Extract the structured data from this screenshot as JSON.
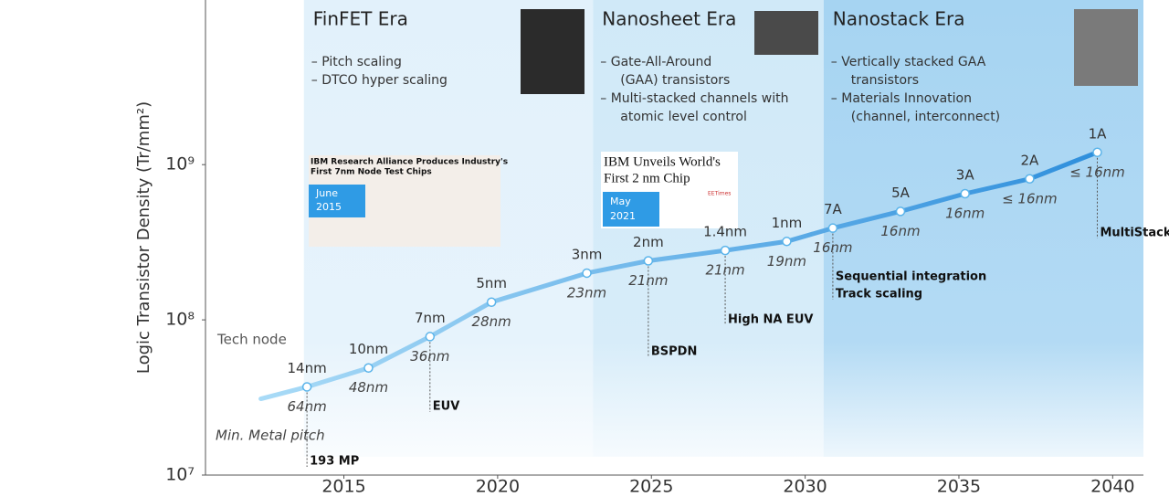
{
  "chart_data": {
    "type": "line",
    "y_label": "Logic Transistor Density (Tr/mm²)",
    "log_y": true,
    "xlim": [
      2010.5,
      2041
    ],
    "xticks": [
      2015,
      2020,
      2025,
      2030,
      2035,
      2040
    ],
    "ylim": [
      10000000,
      11500000000
    ],
    "yticks": [
      {
        "value": 10000000,
        "label": "10⁷"
      },
      {
        "value": 100000000,
        "label": "10⁸"
      },
      {
        "value": 1000000000,
        "label": "10⁹"
      }
    ],
    "x": [
      2012.3,
      2013.8,
      2015.8,
      2017.8,
      2019.8,
      2022.9,
      2024.9,
      2027.4,
      2029.4,
      2030.9,
      2033.1,
      2035.2,
      2037.3,
      2039.5
    ],
    "series": [
      {
        "name": "Tech node",
        "color": "#5bb4ea",
        "values": [
          31000000,
          37000000,
          49000000,
          78000000,
          130000000,
          200000000,
          240000000,
          280000000,
          320000000,
          390000000,
          500000000,
          650000000,
          810000000,
          1200000000
        ]
      }
    ],
    "node_labels": [
      null,
      "14nm",
      "10nm",
      "7nm",
      "5nm",
      "3nm",
      "2nm",
      "1.4nm",
      "1nm",
      "7A",
      "5A",
      "3A",
      "2A",
      "1A"
    ],
    "pitch_label": "Min. Metal pitch",
    "pitch_labels": [
      null,
      "64nm",
      "48nm",
      "36nm",
      "28nm",
      "23nm",
      "21nm",
      "21nm",
      "19nm",
      "16nm",
      "16nm",
      "16nm",
      "≤ 16nm",
      "≤ 16nm"
    ],
    "eras": [
      {
        "title": "FinFET Era",
        "start": 2013.7,
        "end": 2023.1,
        "color": "#e2f1fb",
        "bullets": [
          "–  Pitch scaling",
          "–  DTCO hyper scaling"
        ]
      },
      {
        "title": "Nanosheet Era",
        "start": 2023.1,
        "end": 2030.6,
        "color": "#d0e9f8",
        "bullets": [
          "–  Gate-All-Around",
          "(GAA) transistors",
          "–  Multi-stacked channels with",
          "atomic level control"
        ]
      },
      {
        "title": "Nanostack Era",
        "start": 2030.6,
        "end": 2041,
        "color": "#a6d4f2",
        "bullets": [
          "–  Vertically stacked GAA",
          "transistors",
          "–  Materials Innovation",
          "(channel, interconnect)"
        ]
      }
    ],
    "milestones": [
      {
        "x": 2013.8,
        "lines": [
          "193 MP"
        ]
      },
      {
        "x": 2017.8,
        "lines": [
          "EUV"
        ]
      },
      {
        "x": 2024.9,
        "lines": [
          "BSPDN"
        ]
      },
      {
        "x": 2027.4,
        "lines": [
          "High NA EUV"
        ]
      },
      {
        "x": 2030.9,
        "lines": [
          "Sequential integration",
          "Track scaling"
        ]
      },
      {
        "x": 2039.5,
        "lines": [
          "MultiStack"
        ]
      }
    ]
  },
  "news": [
    {
      "headline": [
        "IBM Research Alliance Produces Industry's",
        "First 7nm Node Test Chips"
      ],
      "date": [
        "June",
        "2015"
      ]
    },
    {
      "headline": [
        "IBM Unveils World's",
        "First 2 nm Chip"
      ],
      "date": [
        "May",
        "2021"
      ],
      "source": "EETimes"
    }
  ]
}
